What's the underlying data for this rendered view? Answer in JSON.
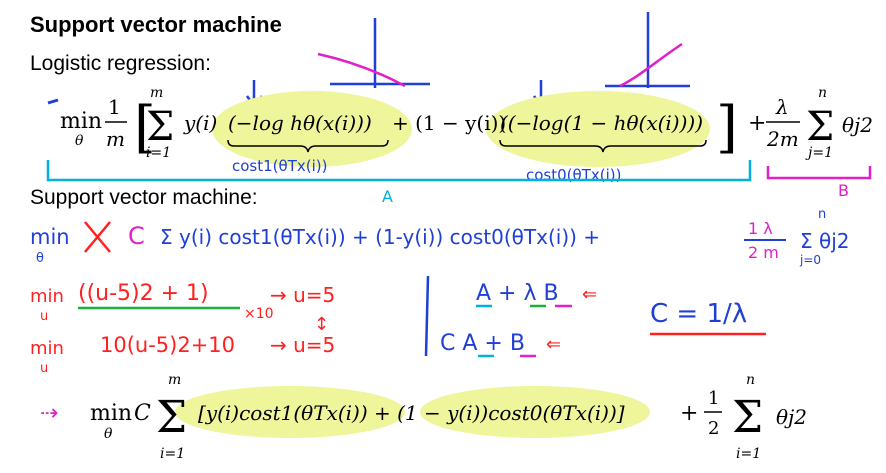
{
  "title": "Support vector machine",
  "section_logistic": "Logistic regression:",
  "section_svm": "Support vector machine:",
  "eq1": {
    "min": "min",
    "theta": "θ",
    "one": "1",
    "m": "m",
    "sum_top": "m",
    "sum_bottom": "i=1",
    "y_i": "y(i)",
    "term1": "(−log hθ(x(i)))",
    "plus_one_minus_y": "+ (1 − y(i))",
    "term2": "((−log(1 − hθ(x(i))))",
    "lambda_frac_top": "λ",
    "lambda_frac_bottom": "2m",
    "sum2_top": "n",
    "sum2_bottom": "j=1",
    "theta_sq": "θj2"
  },
  "annotations": {
    "cost1": "cost1(θTx(i))",
    "cost0": "cost0(θTx(i))",
    "label_A": "A",
    "label_B": "B",
    "svm_line": "min  m  C Σ y(i) cost1(θTx(i)) + (1-y(i)) cost0(θTx(i)) +",
    "reg_frac_top": "1  λ",
    "reg_frac_bottom": "2  m",
    "reg_sum": "Σ θj2",
    "reg_sum_top": "n",
    "reg_sum_bottom": "j=0",
    "ex1_min": "min",
    "ex1_u": "u",
    "ex1_expr": "((u-5)2 + 1)",
    "ex1_times": "×10",
    "ex1_result": "→ u=5",
    "ex2_min": "min",
    "ex2_u": "u",
    "ex2_expr": "10(u-5)2+10",
    "ex2_result": "→ u=5",
    "right_top": "A + λ B",
    "right_bottom": "C A + B",
    "c_eq": "C = 1/λ"
  },
  "eq2": {
    "min": "min",
    "theta": "θ",
    "C": "C",
    "sum_top": "m",
    "sum_bottom": "i=1",
    "body": "[y(i)cost1(θTx(i)) + (1 − y(i))cost0(θTx(i))]",
    "plus": "+",
    "half_top": "1",
    "half_bottom": "2",
    "sum2_top": "n",
    "sum2_bottom": "i=1",
    "theta_sq": "θj2"
  },
  "colors": {
    "highlight": "#eef59a",
    "blue_ink": "#1f3fd6",
    "cyan_ink": "#00b0e0",
    "magenta_ink": "#e020c8",
    "red_ink": "#ff2020",
    "green_ink": "#1ab03a"
  }
}
